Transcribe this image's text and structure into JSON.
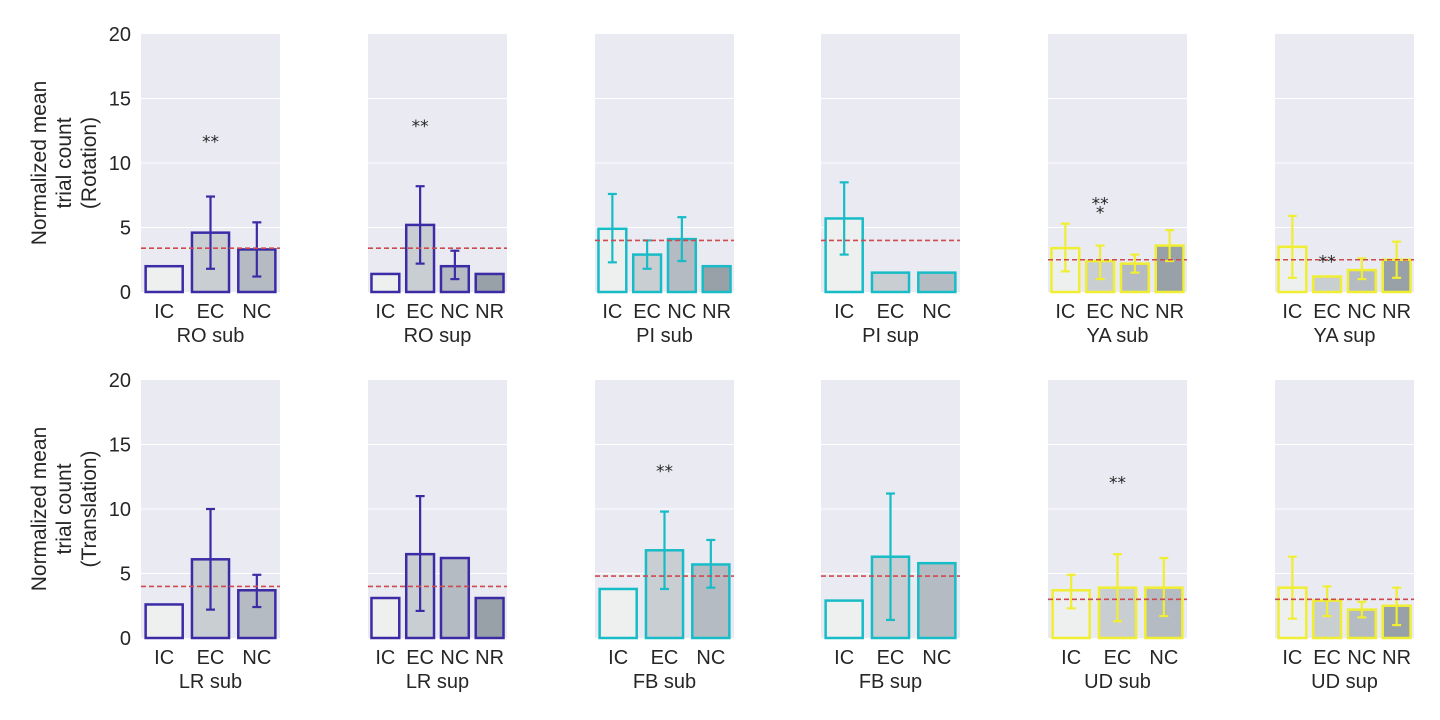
{
  "colors": {
    "plot_bg": "#eaeaf2",
    "grid": "#ffffff",
    "ref_line": "#cd4a4e",
    "text": "#262626",
    "RO": "#3b2ba5",
    "PI": "#18bcc6",
    "YA": "#f0ee32",
    "LR": "#3b2ba5",
    "FB": "#18bcc6",
    "UD": "#f0ee32",
    "fill_IC": "#eef0ef",
    "fill_EC": "#c9ced3",
    "fill_NC": "#b4bbc2",
    "fill_NR": "#97a1a7"
  },
  "rows": [
    {
      "ylabel": [
        "Normalized mean",
        "trial count",
        "(Rotation)"
      ]
    },
    {
      "ylabel": [
        "Normalized mean",
        "trial count",
        "(Translation)"
      ]
    }
  ],
  "chart_data": {
    "type": "bar",
    "ylim": [
      0,
      20
    ],
    "yticks": [
      "0",
      "5",
      "10",
      "15",
      "20"
    ],
    "grid": true,
    "panels": [
      {
        "row": 0,
        "title": "RO sub",
        "color_key": "RO",
        "ref": 3.4,
        "categories": [
          "IC",
          "EC",
          "NC"
        ],
        "values": [
          2.0,
          4.6,
          3.3
        ],
        "err_low": [
          null,
          1.8,
          1.2
        ],
        "err_high": [
          null,
          7.4,
          5.4
        ],
        "annotations": [
          {
            "text": "**",
            "x": "EC",
            "y": 11.2
          }
        ]
      },
      {
        "row": 0,
        "title": "RO sup",
        "color_key": "RO",
        "ref": 3.4,
        "categories": [
          "IC",
          "EC",
          "NC",
          "NR"
        ],
        "values": [
          1.4,
          5.2,
          2.0,
          1.4
        ],
        "err_low": [
          null,
          2.2,
          1.0,
          null
        ],
        "err_high": [
          null,
          8.2,
          3.2,
          null
        ],
        "annotations": [
          {
            "text": "**",
            "x": "EC",
            "y": 12.4
          }
        ]
      },
      {
        "row": 0,
        "title": "PI sub",
        "color_key": "PI",
        "ref": 4.0,
        "categories": [
          "IC",
          "EC",
          "NC",
          "NR"
        ],
        "values": [
          4.9,
          2.9,
          4.1,
          2.0
        ],
        "err_low": [
          2.3,
          1.8,
          2.4,
          null
        ],
        "err_high": [
          7.6,
          4.0,
          5.8,
          null
        ],
        "annotations": []
      },
      {
        "row": 0,
        "title": "PI sup",
        "color_key": "PI",
        "ref": 4.0,
        "categories": [
          "IC",
          "EC",
          "NC"
        ],
        "values": [
          5.7,
          1.5,
          1.5
        ],
        "err_low": [
          2.9,
          null,
          null
        ],
        "err_high": [
          8.5,
          null,
          null
        ],
        "annotations": []
      },
      {
        "row": 0,
        "title": "YA sub",
        "color_key": "YA",
        "ref": 2.5,
        "categories": [
          "IC",
          "EC",
          "NC",
          "NR"
        ],
        "values": [
          3.4,
          2.4,
          2.2,
          3.6
        ],
        "err_low": [
          1.6,
          1.0,
          1.5,
          2.4
        ],
        "err_high": [
          5.3,
          3.6,
          2.9,
          4.8
        ],
        "annotations": [
          {
            "text": "**",
            "x": "EC",
            "y": 6.4
          },
          {
            "text": "*",
            "x": "EC",
            "y": 5.7
          }
        ]
      },
      {
        "row": 0,
        "title": "YA sup",
        "color_key": "YA",
        "ref": 2.5,
        "categories": [
          "IC",
          "EC",
          "NC",
          "NR"
        ],
        "values": [
          3.5,
          1.2,
          1.7,
          2.5
        ],
        "err_low": [
          1.1,
          null,
          1.0,
          1.1
        ],
        "err_high": [
          5.9,
          null,
          2.6,
          3.9
        ],
        "annotations": [
          {
            "text": "**",
            "x": "EC",
            "y": 1.9
          }
        ]
      },
      {
        "row": 1,
        "title": "LR sub",
        "color_key": "LR",
        "ref": 4.0,
        "categories": [
          "IC",
          "EC",
          "NC"
        ],
        "values": [
          2.6,
          6.1,
          3.7
        ],
        "err_low": [
          null,
          2.2,
          2.4
        ],
        "err_high": [
          null,
          10.0,
          4.9
        ],
        "annotations": []
      },
      {
        "row": 1,
        "title": "LR sup",
        "color_key": "LR",
        "ref": 4.0,
        "categories": [
          "IC",
          "EC",
          "NC",
          "NR"
        ],
        "values": [
          3.1,
          6.5,
          6.2,
          3.1
        ],
        "err_low": [
          null,
          2.1,
          null,
          null
        ],
        "err_high": [
          null,
          11.0,
          null,
          null
        ],
        "annotations": []
      },
      {
        "row": 1,
        "title": "FB sub",
        "color_key": "FB",
        "ref": 4.8,
        "categories": [
          "IC",
          "EC",
          "NC"
        ],
        "values": [
          3.8,
          6.8,
          5.7
        ],
        "err_low": [
          null,
          3.8,
          3.9
        ],
        "err_high": [
          null,
          9.8,
          7.6
        ],
        "annotations": [
          {
            "text": "**",
            "x": "EC",
            "y": 12.5
          }
        ]
      },
      {
        "row": 1,
        "title": "FB sup",
        "color_key": "FB",
        "ref": 4.8,
        "categories": [
          "IC",
          "EC",
          "NC"
        ],
        "values": [
          2.9,
          6.3,
          5.8
        ],
        "err_low": [
          null,
          1.4,
          null
        ],
        "err_high": [
          null,
          11.2,
          null
        ],
        "annotations": []
      },
      {
        "row": 1,
        "title": "UD sub",
        "color_key": "UD",
        "ref": 3.0,
        "categories": [
          "IC",
          "EC",
          "NC"
        ],
        "values": [
          3.7,
          3.9,
          3.9
        ],
        "err_low": [
          2.3,
          1.3,
          1.7
        ],
        "err_high": [
          4.9,
          6.5,
          6.2
        ],
        "annotations": [
          {
            "text": "**",
            "x": "EC",
            "y": 11.6
          }
        ]
      },
      {
        "row": 1,
        "title": "UD sup",
        "color_key": "UD",
        "ref": 3.0,
        "categories": [
          "IC",
          "EC",
          "NC",
          "NR"
        ],
        "values": [
          3.9,
          2.9,
          2.2,
          2.5
        ],
        "err_low": [
          1.5,
          1.7,
          1.6,
          1.0
        ],
        "err_high": [
          6.3,
          4.0,
          2.8,
          3.9
        ],
        "annotations": []
      }
    ]
  }
}
